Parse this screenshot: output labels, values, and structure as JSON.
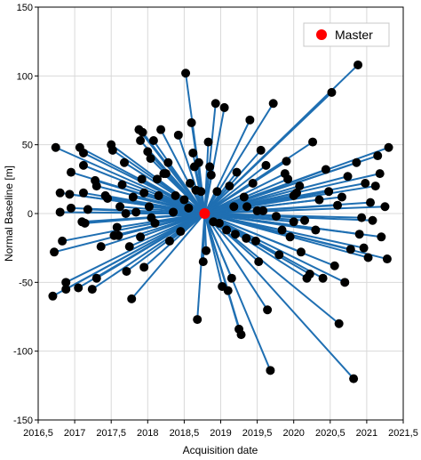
{
  "chart_data": {
    "type": "scatter",
    "subtype": "baseline-network",
    "xlabel": "Acquisition date",
    "ylabel": "Normal Baseline [m]",
    "xlim": [
      2016.5,
      2021.5
    ],
    "ylim": [
      -150,
      150
    ],
    "x_ticks": [
      2016.5,
      2017,
      2017.5,
      2018,
      2018.5,
      2019,
      2019.5,
      2020,
      2020.5,
      2021,
      2021.5
    ],
    "x_tick_labels": [
      "2016,5",
      "2017",
      "2017,5",
      "2018",
      "2018,5",
      "2019",
      "2019,5",
      "2020",
      "2020,5",
      "2021",
      "2021,5"
    ],
    "y_ticks": [
      -150,
      -100,
      -50,
      0,
      50,
      100,
      150
    ],
    "y_tick_labels": [
      "-150",
      "-100",
      "-50",
      "0",
      "50",
      "100",
      "150"
    ],
    "grid": true,
    "legend_position": "top-right",
    "master": {
      "name": "Master",
      "x": 2018.78,
      "y": 0,
      "color": "#ff0000"
    },
    "line_color": "#1f6fb2",
    "point_color": "#000000",
    "points": [
      [
        2016.74,
        48
      ],
      [
        2016.72,
        -28
      ],
      [
        2016.7,
        -60
      ],
      [
        2016.8,
        1
      ],
      [
        2016.8,
        15
      ],
      [
        2016.83,
        -20
      ],
      [
        2016.88,
        -50
      ],
      [
        2016.88,
        -55
      ],
      [
        2016.93,
        14
      ],
      [
        2016.95,
        30
      ],
      [
        2016.95,
        4
      ],
      [
        2017.05,
        -54
      ],
      [
        2017.07,
        48
      ],
      [
        2017.1,
        -6
      ],
      [
        2017.12,
        35
      ],
      [
        2017.12,
        44
      ],
      [
        2017.12,
        15
      ],
      [
        2017.14,
        -7
      ],
      [
        2017.18,
        3
      ],
      [
        2017.24,
        -55
      ],
      [
        2017.28,
        24
      ],
      [
        2017.3,
        20
      ],
      [
        2017.3,
        -47
      ],
      [
        2017.36,
        -24
      ],
      [
        2017.42,
        13
      ],
      [
        2017.45,
        11
      ],
      [
        2017.5,
        50
      ],
      [
        2017.52,
        46
      ],
      [
        2017.54,
        -16
      ],
      [
        2017.58,
        -10
      ],
      [
        2017.6,
        -16
      ],
      [
        2017.62,
        5
      ],
      [
        2017.65,
        21
      ],
      [
        2017.68,
        37
      ],
      [
        2017.7,
        0
      ],
      [
        2017.71,
        -42
      ],
      [
        2017.75,
        -24
      ],
      [
        2017.78,
        -62
      ],
      [
        2017.8,
        12
      ],
      [
        2017.84,
        1
      ],
      [
        2017.88,
        61
      ],
      [
        2017.9,
        53
      ],
      [
        2017.92,
        25
      ],
      [
        2017.93,
        59
      ],
      [
        2017.95,
        15
      ],
      [
        2017.95,
        -39
      ],
      [
        2018.0,
        45
      ],
      [
        2018.02,
        5
      ],
      [
        2018.04,
        40
      ],
      [
        2018.05,
        -3
      ],
      [
        2018.08,
        53
      ],
      [
        2018.1,
        -7
      ],
      [
        2018.13,
        25
      ],
      [
        2018.15,
        13
      ],
      [
        2018.18,
        61
      ],
      [
        2018.22,
        29
      ],
      [
        2018.25,
        29
      ],
      [
        2018.28,
        37
      ],
      [
        2018.3,
        -20
      ],
      [
        2018.35,
        1
      ],
      [
        2018.38,
        13
      ],
      [
        2018.42,
        57
      ],
      [
        2018.45,
        -13
      ],
      [
        2018.5,
        10
      ],
      [
        2018.52,
        102
      ],
      [
        2018.56,
        4
      ],
      [
        2018.6,
        66
      ],
      [
        2018.62,
        44
      ],
      [
        2018.64,
        34
      ],
      [
        2018.66,
        17
      ],
      [
        2018.68,
        -77
      ],
      [
        2018.7,
        37
      ],
      [
        2018.73,
        16
      ],
      [
        2018.76,
        -35
      ],
      [
        2018.8,
        -27
      ],
      [
        2018.83,
        52
      ],
      [
        2018.85,
        34
      ],
      [
        2018.87,
        28
      ],
      [
        2018.9,
        -6
      ],
      [
        2018.93,
        80
      ],
      [
        2018.95,
        16
      ],
      [
        2018.98,
        -7
      ],
      [
        2019.02,
        -53
      ],
      [
        2019.05,
        77
      ],
      [
        2019.08,
        -12
      ],
      [
        2019.1,
        -56
      ],
      [
        2019.12,
        20
      ],
      [
        2019.15,
        -47
      ],
      [
        2019.18,
        5
      ],
      [
        2019.2,
        -15
      ],
      [
        2019.22,
        30
      ],
      [
        2019.25,
        -84
      ],
      [
        2019.28,
        -88
      ],
      [
        2019.32,
        12
      ],
      [
        2019.36,
        5
      ],
      [
        2019.4,
        68
      ],
      [
        2019.44,
        22
      ],
      [
        2019.48,
        -20
      ],
      [
        2019.5,
        2
      ],
      [
        2019.52,
        -35
      ],
      [
        2019.55,
        46
      ],
      [
        2019.58,
        2
      ],
      [
        2019.62,
        35
      ],
      [
        2019.64,
        -70
      ],
      [
        2019.68,
        -114
      ],
      [
        2019.72,
        80
      ],
      [
        2019.76,
        -2
      ],
      [
        2019.8,
        -30
      ],
      [
        2019.84,
        -12
      ],
      [
        2019.88,
        29
      ],
      [
        2019.92,
        25
      ],
      [
        2019.95,
        -17
      ],
      [
        2020.0,
        -6
      ],
      [
        2020.04,
        15
      ],
      [
        2020.08,
        20
      ],
      [
        2020.1,
        -28
      ],
      [
        2020.15,
        -5
      ],
      [
        2020.18,
        -47
      ],
      [
        2020.22,
        -44
      ],
      [
        2020.26,
        52
      ],
      [
        2020.3,
        -12
      ],
      [
        2020.35,
        10
      ],
      [
        2020.4,
        -47
      ],
      [
        2020.44,
        32
      ],
      [
        2020.48,
        16
      ],
      [
        2020.52,
        88
      ],
      [
        2020.56,
        -38
      ],
      [
        2020.6,
        6
      ],
      [
        2020.62,
        -80
      ],
      [
        2020.66,
        12
      ],
      [
        2020.7,
        -50
      ],
      [
        2020.74,
        27
      ],
      [
        2020.78,
        -26
      ],
      [
        2020.82,
        -120
      ],
      [
        2020.86,
        37
      ],
      [
        2020.88,
        108
      ],
      [
        2020.9,
        -15
      ],
      [
        2020.93,
        -3
      ],
      [
        2020.96,
        -25
      ],
      [
        2020.98,
        22
      ],
      [
        2021.02,
        -32
      ],
      [
        2021.05,
        8
      ],
      [
        2021.08,
        -5
      ],
      [
        2021.12,
        20
      ],
      [
        2021.15,
        42
      ],
      [
        2021.18,
        29
      ],
      [
        2021.2,
        -17
      ],
      [
        2021.25,
        5
      ],
      [
        2021.28,
        -33
      ],
      [
        2021.3,
        48
      ],
      [
        2020.0,
        13
      ],
      [
        2019.9,
        38
      ],
      [
        2019.35,
        -18
      ],
      [
        2018.58,
        22
      ],
      [
        2017.9,
        -17
      ]
    ]
  }
}
